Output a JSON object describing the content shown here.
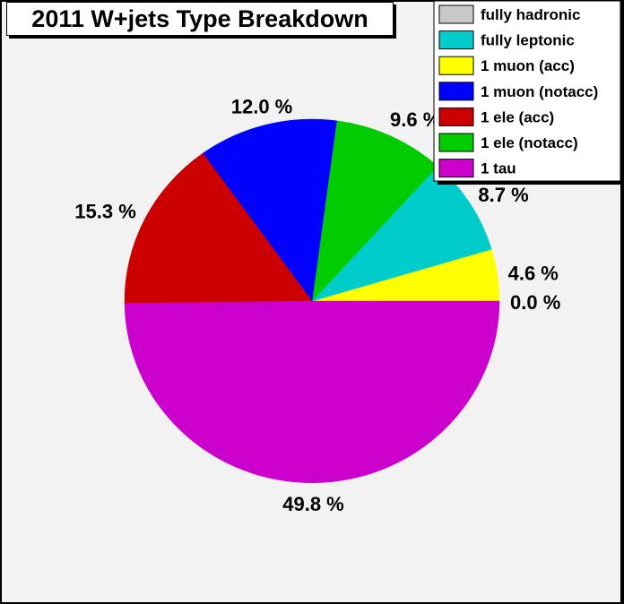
{
  "chart_data": {
    "type": "pie",
    "title": "2011 W+jets Type Breakdown",
    "slices": [
      {
        "label": "fully hadronic",
        "value": 0.0,
        "value_label": "0.0 %",
        "color": "#c8c8c8"
      },
      {
        "label": "fully leptonic",
        "value": 8.7,
        "value_label": "8.7 %",
        "color": "#00cccc"
      },
      {
        "label": "1 muon (acc)",
        "value": 4.6,
        "value_label": "4.6 %",
        "color": "#ffff00"
      },
      {
        "label": "1 muon (notacc)",
        "value": 12.0,
        "value_label": "12.0 %",
        "color": "#0000ff"
      },
      {
        "label": "1 ele (acc)",
        "value": 15.3,
        "value_label": "15.3 %",
        "color": "#cc0000"
      },
      {
        "label": "1 ele (notacc)",
        "value": 9.6,
        "value_label": "9.6 %",
        "color": "#00cc00"
      },
      {
        "label": "1 tau",
        "value": 49.8,
        "value_label": "49.8 %",
        "color": "#cc00cc"
      }
    ],
    "draw_order": [
      0,
      2,
      1,
      5,
      3,
      4,
      6
    ],
    "legend_position": "top-right"
  }
}
